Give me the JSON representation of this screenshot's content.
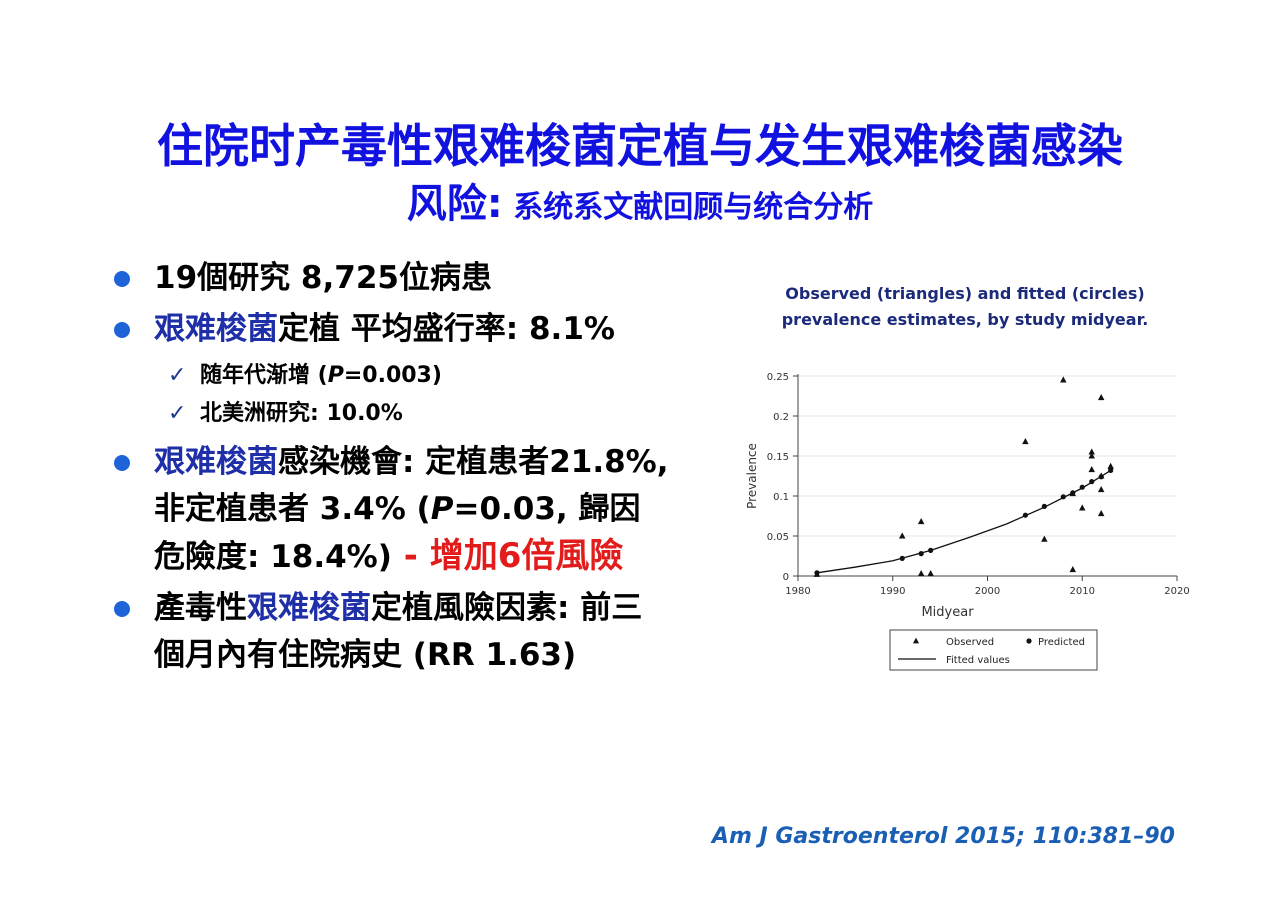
{
  "title": {
    "line1": "住院时产毒性艰难梭菌定植与发生艰难梭菌感染",
    "line2_main": "风险:",
    "line2_sub": " 系统系文献回顾与统合分析"
  },
  "bullets": {
    "b1": "19個研究 8,725位病患",
    "b2_blue": "艰难梭菌",
    "b2_rest": "定植 平均盛行率: 8.1%",
    "sub1_a": "随年代渐增 (",
    "sub1_p": "P",
    "sub1_b": "=0.003)",
    "sub2": "北美洲研究: 10.0%",
    "b3_blue": "艰难梭菌",
    "b3_l1": "感染機會: 定植患者21.8%,",
    "b3_l2a": "非定植患者 3.4% (",
    "b3_p": "P",
    "b3_l2b": "=0.03, 歸因",
    "b3_l3": "危險度: 18.4%)",
    "b3_red": "  - 增加6倍風險",
    "b4_a": "產毒性",
    "b4_blue": "艰难梭菌",
    "b4_b": "定植風險因素: 前三",
    "b4_l2": "個月內有住院病史 (RR 1.63)",
    "check_glyph": "✓"
  },
  "chart_title": {
    "line1": "Observed (triangles) and fitted (circles)",
    "line2": "prevalence estimates, by study midyear."
  },
  "chart_data": {
    "type": "scatter",
    "xlabel": "Midyear",
    "ylabel": "Prevalence",
    "xlim": [
      1980,
      2020
    ],
    "ylim": [
      0,
      0.25
    ],
    "xticks": [
      1980,
      1990,
      2000,
      2010,
      2020
    ],
    "yticks": [
      0,
      0.05,
      0.1,
      0.15,
      0.2,
      0.25
    ],
    "ytick_labels": [
      "0",
      "0.05",
      "0.1",
      "0.15",
      "0.2",
      "0.25"
    ],
    "grid": "horizontal",
    "series": [
      {
        "name": "Observed",
        "marker": "triangle",
        "points": [
          [
            1982,
            0.002
          ],
          [
            1991,
            0.05
          ],
          [
            1993,
            0.068
          ],
          [
            1993,
            0.003
          ],
          [
            1994,
            0.003
          ],
          [
            2004,
            0.168
          ],
          [
            2006,
            0.046
          ],
          [
            2008,
            0.245
          ],
          [
            2009,
            0.103
          ],
          [
            2009,
            0.008
          ],
          [
            2010,
            0.085
          ],
          [
            2011,
            0.155
          ],
          [
            2011,
            0.15
          ],
          [
            2011,
            0.133
          ],
          [
            2012,
            0.223
          ],
          [
            2012,
            0.125
          ],
          [
            2012,
            0.108
          ],
          [
            2012,
            0.078
          ],
          [
            2013,
            0.137
          ]
        ]
      },
      {
        "name": "Predicted",
        "marker": "circle",
        "points": [
          [
            1982,
            0.004
          ],
          [
            1991,
            0.022
          ],
          [
            1993,
            0.028
          ],
          [
            1994,
            0.032
          ],
          [
            2004,
            0.076
          ],
          [
            2006,
            0.087
          ],
          [
            2008,
            0.099
          ],
          [
            2009,
            0.104
          ],
          [
            2010,
            0.111
          ],
          [
            2011,
            0.118
          ],
          [
            2012,
            0.124
          ],
          [
            2013,
            0.132
          ]
        ]
      },
      {
        "name": "Fitted values",
        "marker": "line",
        "points": [
          [
            1982,
            0.004
          ],
          [
            1986,
            0.011
          ],
          [
            1990,
            0.019
          ],
          [
            1994,
            0.032
          ],
          [
            1998,
            0.048
          ],
          [
            2002,
            0.065
          ],
          [
            2006,
            0.086
          ],
          [
            2010,
            0.11
          ],
          [
            2013,
            0.132
          ]
        ]
      }
    ],
    "legend": {
      "placement": "bottom",
      "observed": "Observed",
      "predicted": "Predicted",
      "fitted": "Fitted values"
    }
  },
  "citation": "Am J Gastroenterol  2015; 110:381–90",
  "colors": {
    "title": "#1212e0",
    "bullet_dot": "#1f63d8",
    "highlight_blue": "#1f2fa8",
    "red": "#e21b1b",
    "chart_title": "#1b2a7a",
    "citation": "#1a5fb4"
  }
}
